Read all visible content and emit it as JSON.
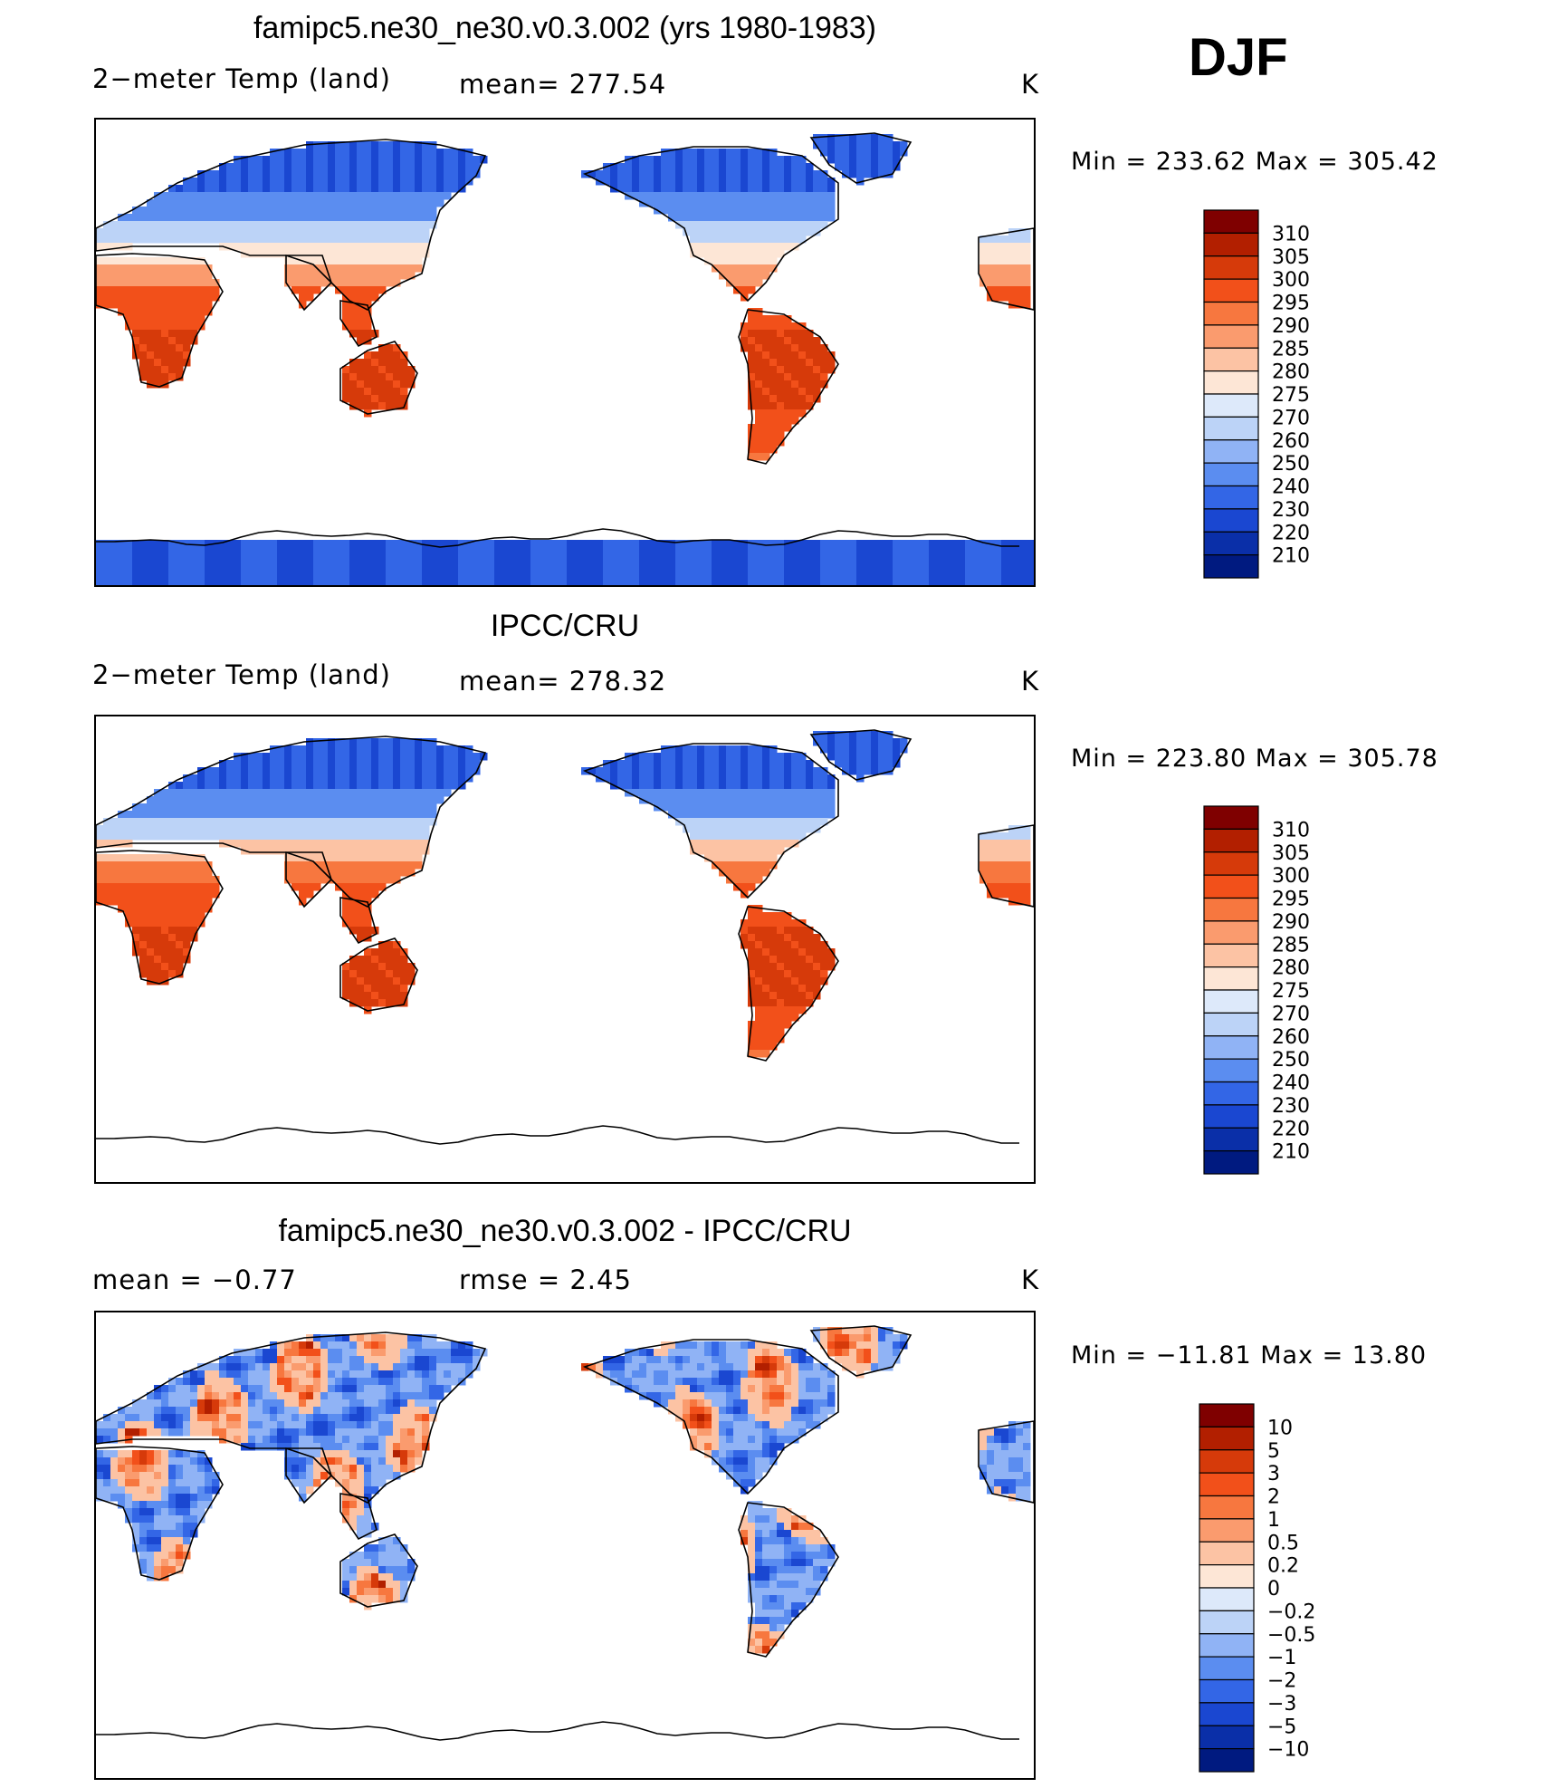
{
  "season": "DJF",
  "units": "K",
  "panels": [
    {
      "id": "model",
      "title": "famipc5.ne30_ne30.v0.3.002 (yrs 1980-1983)",
      "left_label": "2−meter Temp (land)",
      "center_label": "mean=  277.54",
      "right_label": "K",
      "minmax": "Min  =  233.62  Max  =  305.42",
      "legend_levels": [
        "310",
        "305",
        "300",
        "295",
        "290",
        "285",
        "280",
        "275",
        "270",
        "260",
        "250",
        "240",
        "230",
        "220",
        "210"
      ],
      "antarctica_filled": true
    },
    {
      "id": "obs",
      "title": "IPCC/CRU",
      "left_label": "2−meter Temp (land)",
      "center_label": "mean=  278.32",
      "right_label": "K",
      "minmax": "Min  =  223.80  Max  =  305.78",
      "legend_levels": [
        "310",
        "305",
        "300",
        "295",
        "290",
        "285",
        "280",
        "275",
        "270",
        "260",
        "250",
        "240",
        "230",
        "220",
        "210"
      ],
      "antarctica_filled": false
    },
    {
      "id": "diff",
      "title": "famipc5.ne30_ne30.v0.3.002 - IPCC/CRU",
      "left_label": "mean  =    −0.77",
      "center_label": "rmse  =     2.45",
      "right_label": "K",
      "minmax": "Min  =  −11.81  Max  =    13.80",
      "legend_levels": [
        "10",
        "5",
        "3",
        "2",
        "1",
        "0.5",
        "0.2",
        "0",
        "−0.2",
        "−0.5",
        "−1",
        "−2",
        "−3",
        "−5",
        "−10"
      ],
      "antarctica_filled": false
    }
  ],
  "colors": {
    "scale": [
      "#7f0000",
      "#b21f00",
      "#d63a0a",
      "#f2501a",
      "#f7773f",
      "#fa9b6e",
      "#fcc3a4",
      "#fde6d6",
      "#dde9fa",
      "#bcd3f7",
      "#90b3f5",
      "#5b8df0",
      "#3366e6",
      "#1a47d1",
      "#0a2fa8",
      "#001a80"
    ],
    "coast": "#000000",
    "ocean": "#ffffff"
  }
}
